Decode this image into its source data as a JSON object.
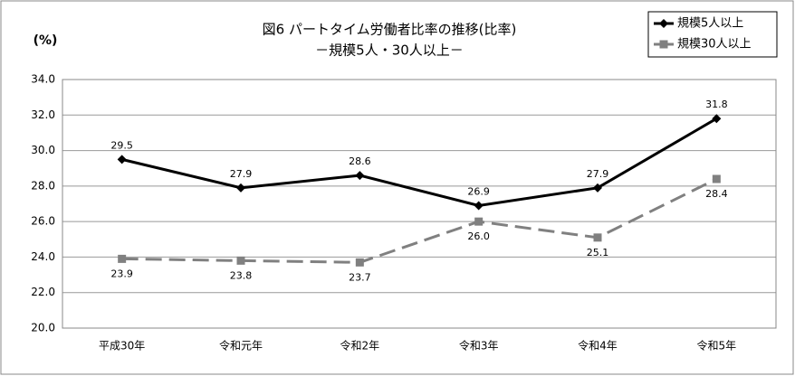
{
  "chart_data": {
    "type": "line",
    "title": "図6 パートタイム労働者比率の推移(比率)",
    "subtitle": "－規模5人・30人以上－",
    "y_label": "(%)",
    "categories": [
      "平成30年",
      "令和元年",
      "令和2年",
      "令和3年",
      "令和4年",
      "令和5年"
    ],
    "series": [
      {
        "name": "規模5人以上",
        "color": "#000000",
        "dashed": false,
        "marker": "diamond",
        "label_side": "above",
        "values": [
          29.5,
          27.9,
          28.6,
          26.9,
          27.9,
          31.8
        ]
      },
      {
        "name": "規模30人以上",
        "color": "#808080",
        "dashed": true,
        "marker": "square",
        "label_side": "below",
        "values": [
          23.9,
          23.8,
          23.7,
          26.0,
          25.1,
          28.4
        ],
        "value_labels": [
          "23.9",
          "23.8",
          "23.7",
          "26.0",
          "25.1",
          "28.4"
        ]
      }
    ],
    "ylim": [
      20,
      34
    ],
    "yticks": [
      {
        "value": 20,
        "label": "20.0"
      },
      {
        "value": 22,
        "label": "22.0"
      },
      {
        "value": 24,
        "label": "24.0"
      },
      {
        "value": 26,
        "label": "26.0"
      },
      {
        "value": 28,
        "label": "28.0"
      },
      {
        "value": 30,
        "label": "30.0"
      },
      {
        "value": 32,
        "label": "32.0"
      },
      {
        "value": 34,
        "label": "34.0"
      }
    ],
    "grid": true,
    "legend": "top-right"
  }
}
